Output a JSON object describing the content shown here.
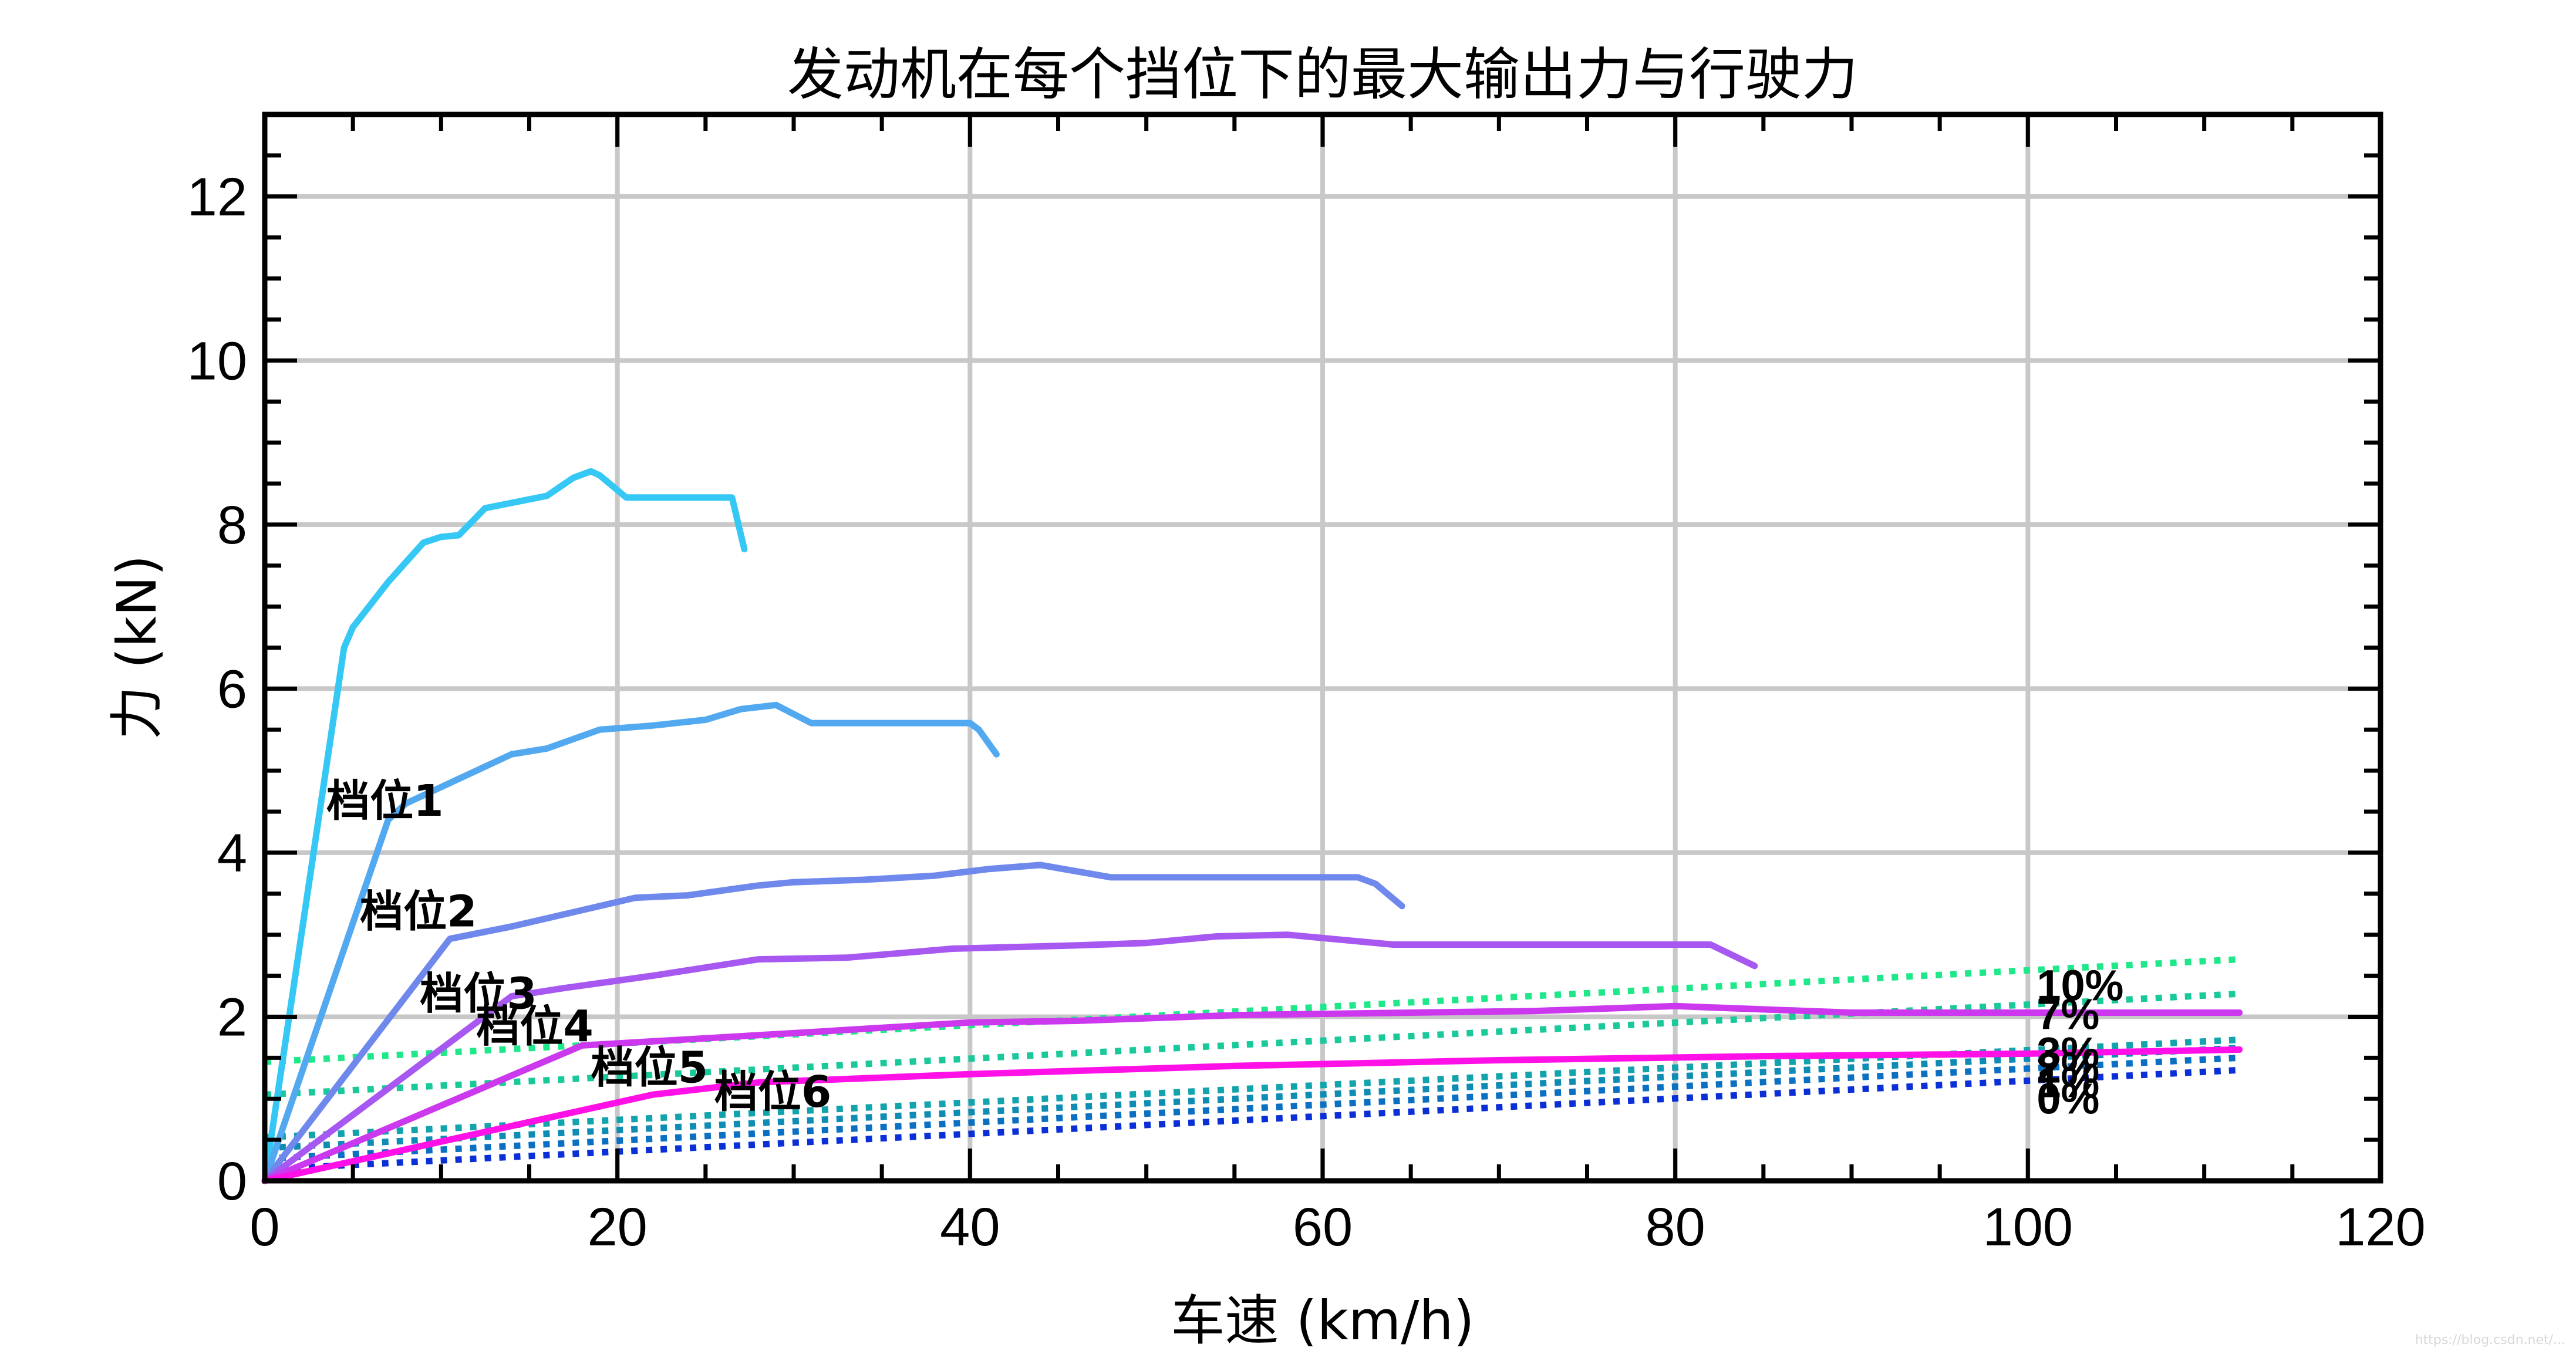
{
  "chart_data": {
    "type": "line",
    "title": "发动机在每个挡位下的最大输出力与行驶力",
    "xlabel": "车速 (km/h)",
    "ylabel": "力 (kN)",
    "xlim": [
      0,
      120
    ],
    "ylim": [
      0,
      13
    ],
    "xticks": [
      0,
      20,
      40,
      60,
      80,
      100,
      120
    ],
    "yticks": [
      0,
      2,
      4,
      6,
      8,
      10,
      12
    ],
    "grid": true,
    "gear_series": [
      {
        "name": "档位1",
        "color": "#36c8f4",
        "x": [
          0,
          4.5,
          5,
          7,
          9,
          10,
          11,
          12.5,
          16,
          17.5,
          18.5,
          19,
          20.5,
          26.5,
          27.2
        ],
        "y": [
          0,
          6.5,
          6.75,
          7.3,
          7.78,
          7.85,
          7.87,
          8.2,
          8.35,
          8.57,
          8.65,
          8.6,
          8.33,
          8.33,
          7.7
        ]
      },
      {
        "name": "档位2",
        "color": "#53a9f0",
        "x": [
          0,
          7,
          8,
          11,
          14,
          16,
          19,
          22,
          25,
          27,
          29,
          31,
          36,
          40,
          40.5,
          41.5
        ],
        "y": [
          0,
          4.4,
          4.6,
          4.9,
          5.2,
          5.27,
          5.5,
          5.55,
          5.62,
          5.75,
          5.8,
          5.58,
          5.58,
          5.58,
          5.5,
          5.2
        ]
      },
      {
        "name": "档位3",
        "color": "#6f88ec",
        "x": [
          0,
          10.5,
          14,
          18,
          21,
          24,
          28,
          30,
          34,
          38,
          41,
          44,
          48,
          55,
          62,
          63,
          64.5
        ],
        "y": [
          0,
          2.95,
          3.1,
          3.3,
          3.45,
          3.48,
          3.6,
          3.64,
          3.67,
          3.72,
          3.8,
          3.85,
          3.7,
          3.7,
          3.7,
          3.62,
          3.35
        ]
      },
      {
        "name": "档位4",
        "color": "#a758f0",
        "x": [
          0,
          14,
          17,
          22,
          28,
          33,
          39,
          46,
          50,
          54,
          58,
          64,
          72,
          82,
          84.5
        ],
        "y": [
          0,
          2.25,
          2.35,
          2.5,
          2.7,
          2.72,
          2.83,
          2.87,
          2.9,
          2.98,
          3.0,
          2.88,
          2.88,
          2.88,
          2.62
        ]
      },
      {
        "name": "档位5",
        "color": "#cc38ee",
        "x": [
          0,
          18,
          22,
          30,
          40,
          46,
          55,
          65,
          72,
          80,
          90,
          100,
          112
        ],
        "y": [
          0,
          1.65,
          1.7,
          1.8,
          1.93,
          1.95,
          2.02,
          2.05,
          2.07,
          2.13,
          2.05,
          2.05,
          2.05
        ]
      },
      {
        "name": "档位6",
        "color": "#ff10e6",
        "x": [
          0,
          22,
          28,
          40,
          55,
          70,
          85,
          100,
          112
        ],
        "y": [
          0,
          1.05,
          1.2,
          1.3,
          1.4,
          1.47,
          1.52,
          1.55,
          1.6
        ]
      }
    ],
    "resistance_series": [
      {
        "name": "10%",
        "color": "#1fe88a",
        "y_at_0": 1.45,
        "y_at_112": 2.7
      },
      {
        "name": "7%",
        "color": "#19c99a",
        "y_at_0": 1.05,
        "y_at_112": 2.28
      },
      {
        "name": "3%",
        "color": "#12a3ad",
        "y_at_0": 0.53,
        "y_at_112": 1.72
      },
      {
        "name": "2%",
        "color": "#0f8cb4",
        "y_at_0": 0.4,
        "y_at_112": 1.62
      },
      {
        "name": "1%",
        "color": "#0b6fc2",
        "y_at_0": 0.27,
        "y_at_112": 1.5
      },
      {
        "name": "0%",
        "color": "#0b2fd6",
        "y_at_0": 0.14,
        "y_at_112": 1.35
      }
    ],
    "gear_label_positions": [
      {
        "text": "档位1",
        "x": 3.5,
        "y": 4.45
      },
      {
        "text": "档位2",
        "x": 5.4,
        "y": 3.1
      },
      {
        "text": "档位3",
        "x": 8.8,
        "y": 2.1
      },
      {
        "text": "档位4",
        "x": 12,
        "y": 1.7
      },
      {
        "text": "档位5",
        "x": 18.5,
        "y": 1.2
      },
      {
        "text": "档位6",
        "x": 25.5,
        "y": 0.9
      }
    ],
    "grade_label_positions": [
      {
        "text": "10%",
        "x": 100.5,
        "y": 2.2
      },
      {
        "text": "7%",
        "x": 100.5,
        "y": 1.85
      },
      {
        "text": "3%",
        "x": 100.5,
        "y": 1.38
      },
      {
        "text": "2%",
        "x": 100.5,
        "y": 1.2
      },
      {
        "text": "1%",
        "x": 100.5,
        "y": 1.02
      },
      {
        "text": "0%",
        "x": 100.5,
        "y": 0.82
      }
    ],
    "watermark": "https://blog.csdn.net/..."
  }
}
